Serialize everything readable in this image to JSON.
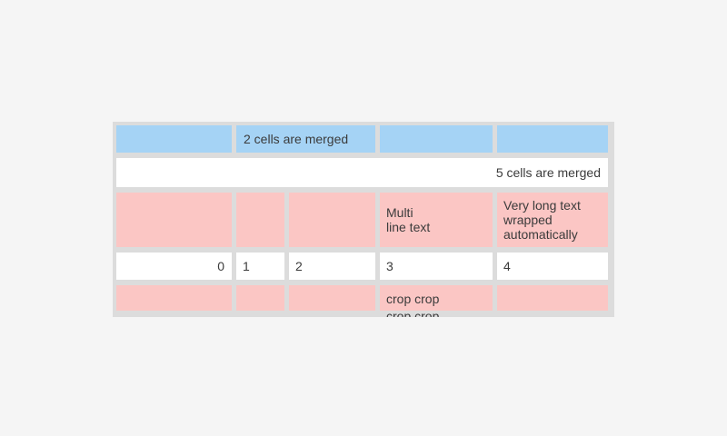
{
  "colors": {
    "page_background": "#f5f5f5",
    "table_background": "#dcdcdc",
    "blue_cell": "#a5d3f5",
    "pink_cell": "#fbc6c4",
    "white_cell": "#ffffff",
    "text": "#3b3b3b"
  },
  "table": {
    "rows": [
      {
        "style": "blue",
        "cells": [
          {
            "text": ""
          },
          {
            "text": "2 cells are merged"
          },
          {
            "text": ""
          },
          {
            "text": ""
          }
        ]
      },
      {
        "style": "white",
        "cells": [
          {
            "text": "5 cells are merged"
          }
        ]
      },
      {
        "style": "pink",
        "cells": [
          {
            "text": ""
          },
          {
            "text": ""
          },
          {
            "text": ""
          },
          {
            "text": "Multi\nline text"
          },
          {
            "text": "Very long text wrapped automatically"
          }
        ]
      },
      {
        "style": "white",
        "cells": [
          {
            "text": "0"
          },
          {
            "text": "1"
          },
          {
            "text": "2"
          },
          {
            "text": "3"
          },
          {
            "text": "4"
          }
        ]
      },
      {
        "style": "pink",
        "cells": [
          {
            "text": ""
          },
          {
            "text": ""
          },
          {
            "text": ""
          },
          {
            "text": "crop crop crop crop"
          },
          {
            "text": ""
          }
        ]
      }
    ]
  }
}
